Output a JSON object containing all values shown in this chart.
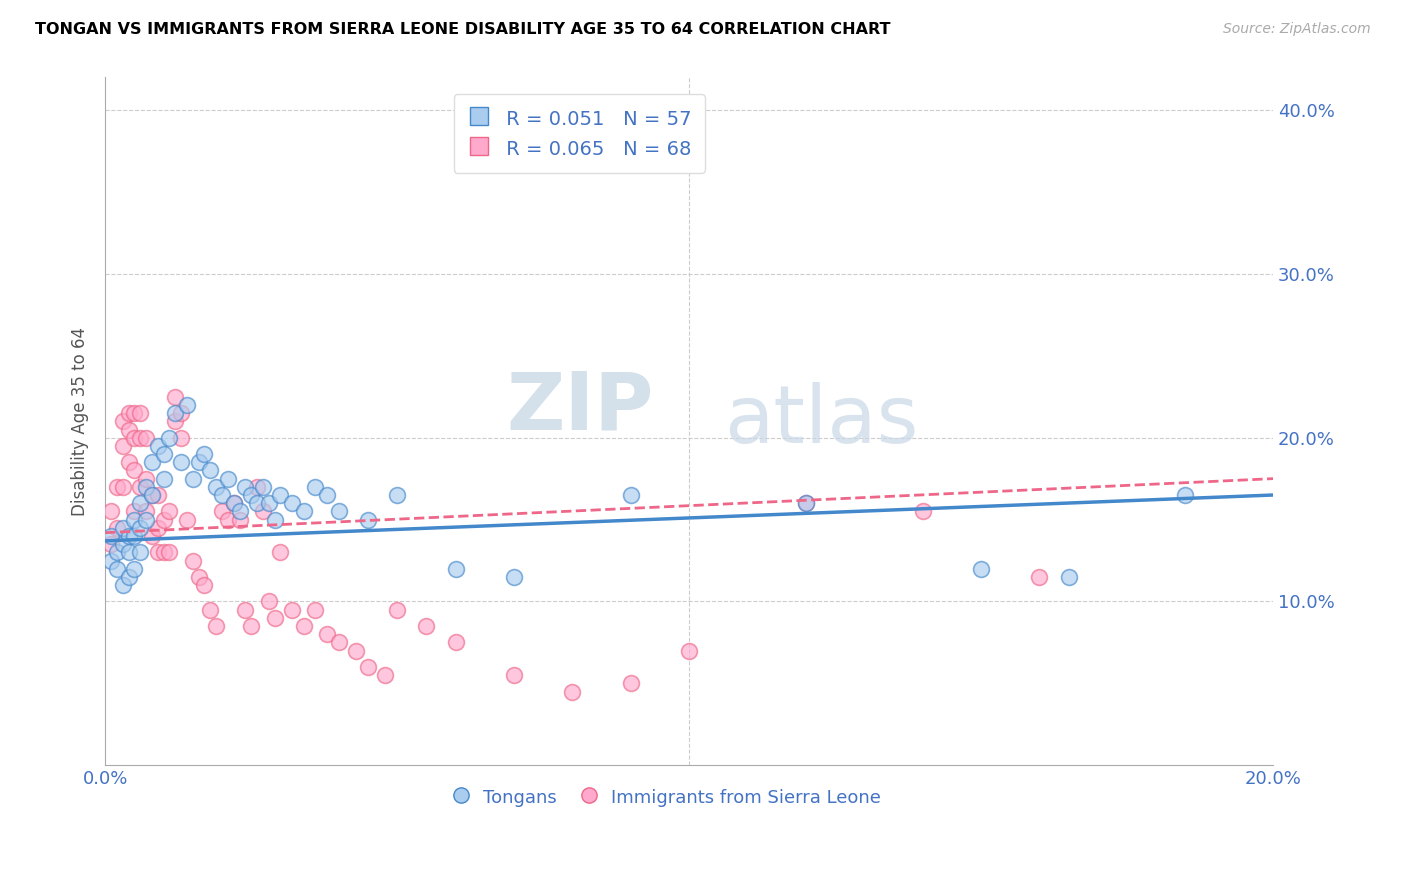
{
  "title": "TONGAN VS IMMIGRANTS FROM SIERRA LEONE DISABILITY AGE 35 TO 64 CORRELATION CHART",
  "source": "Source: ZipAtlas.com",
  "ylabel": "Disability Age 35 to 64",
  "xlim": [
    0.0,
    0.2
  ],
  "ylim": [
    0.0,
    0.42
  ],
  "xticks": [
    0.0,
    0.05,
    0.1,
    0.15,
    0.2
  ],
  "xticklabels": [
    "0.0%",
    "",
    "",
    "",
    "20.0%"
  ],
  "yticks": [
    0.0,
    0.1,
    0.2,
    0.3,
    0.4
  ],
  "yticklabels": [
    "",
    "10.0%",
    "20.0%",
    "30.0%",
    "40.0%"
  ],
  "color_blue": "#aaccee",
  "color_pink": "#ffaacc",
  "color_blue_line": "#4488cc",
  "color_pink_line": "#ee6688",
  "color_text": "#4472c4",
  "R_blue": 0.051,
  "N_blue": 57,
  "R_pink": 0.065,
  "N_pink": 68,
  "legend_blue": "Tongans",
  "legend_pink": "Immigrants from Sierra Leone",
  "watermark_zip": "ZIP",
  "watermark_atlas": "atlas",
  "tongans_x": [
    0.001,
    0.001,
    0.002,
    0.002,
    0.003,
    0.003,
    0.003,
    0.004,
    0.004,
    0.004,
    0.005,
    0.005,
    0.005,
    0.006,
    0.006,
    0.006,
    0.007,
    0.007,
    0.008,
    0.008,
    0.009,
    0.01,
    0.01,
    0.011,
    0.012,
    0.013,
    0.014,
    0.015,
    0.016,
    0.017,
    0.018,
    0.019,
    0.02,
    0.021,
    0.022,
    0.023,
    0.024,
    0.025,
    0.026,
    0.027,
    0.028,
    0.029,
    0.03,
    0.032,
    0.034,
    0.036,
    0.038,
    0.04,
    0.045,
    0.05,
    0.06,
    0.07,
    0.09,
    0.12,
    0.15,
    0.165,
    0.185
  ],
  "tongans_y": [
    0.14,
    0.125,
    0.13,
    0.12,
    0.145,
    0.135,
    0.11,
    0.14,
    0.13,
    0.115,
    0.15,
    0.14,
    0.12,
    0.16,
    0.145,
    0.13,
    0.17,
    0.15,
    0.185,
    0.165,
    0.195,
    0.19,
    0.175,
    0.2,
    0.215,
    0.185,
    0.22,
    0.175,
    0.185,
    0.19,
    0.18,
    0.17,
    0.165,
    0.175,
    0.16,
    0.155,
    0.17,
    0.165,
    0.16,
    0.17,
    0.16,
    0.15,
    0.165,
    0.16,
    0.155,
    0.17,
    0.165,
    0.155,
    0.15,
    0.165,
    0.12,
    0.115,
    0.165,
    0.16,
    0.12,
    0.115,
    0.165
  ],
  "sierra_x": [
    0.001,
    0.001,
    0.002,
    0.002,
    0.003,
    0.003,
    0.003,
    0.004,
    0.004,
    0.004,
    0.005,
    0.005,
    0.005,
    0.005,
    0.006,
    0.006,
    0.006,
    0.007,
    0.007,
    0.007,
    0.008,
    0.008,
    0.009,
    0.009,
    0.009,
    0.01,
    0.01,
    0.011,
    0.011,
    0.012,
    0.012,
    0.013,
    0.013,
    0.014,
    0.015,
    0.016,
    0.017,
    0.018,
    0.019,
    0.02,
    0.021,
    0.022,
    0.023,
    0.024,
    0.025,
    0.026,
    0.027,
    0.028,
    0.029,
    0.03,
    0.032,
    0.034,
    0.036,
    0.038,
    0.04,
    0.043,
    0.045,
    0.048,
    0.05,
    0.055,
    0.06,
    0.07,
    0.08,
    0.09,
    0.1,
    0.12,
    0.14,
    0.16
  ],
  "sierra_y": [
    0.155,
    0.135,
    0.17,
    0.145,
    0.21,
    0.195,
    0.17,
    0.215,
    0.205,
    0.185,
    0.215,
    0.2,
    0.18,
    0.155,
    0.215,
    0.2,
    0.17,
    0.2,
    0.175,
    0.155,
    0.165,
    0.14,
    0.165,
    0.145,
    0.13,
    0.15,
    0.13,
    0.155,
    0.13,
    0.225,
    0.21,
    0.215,
    0.2,
    0.15,
    0.125,
    0.115,
    0.11,
    0.095,
    0.085,
    0.155,
    0.15,
    0.16,
    0.15,
    0.095,
    0.085,
    0.17,
    0.155,
    0.1,
    0.09,
    0.13,
    0.095,
    0.085,
    0.095,
    0.08,
    0.075,
    0.07,
    0.06,
    0.055,
    0.095,
    0.085,
    0.075,
    0.055,
    0.045,
    0.05,
    0.07,
    0.16,
    0.155,
    0.115
  ]
}
